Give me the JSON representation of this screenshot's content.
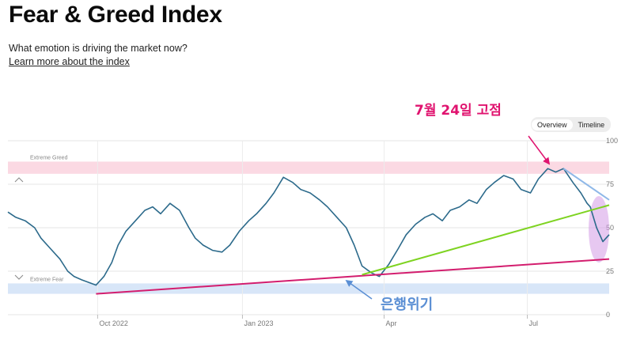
{
  "header": {
    "title": "Fear & Greed Index",
    "subtitle": "What emotion is driving the market now?",
    "learn_more": "Learn more about the index"
  },
  "view_toggle": {
    "options": [
      "Overview",
      "Timeline"
    ]
  },
  "annotations": {
    "peak_label": "7월 24일 고점",
    "bank_crisis_label": "은행위기"
  },
  "colors": {
    "line": "#2c6a8b",
    "greed_zone": "#fbd9e3",
    "fear_zone": "#d8e6f8",
    "annotation_magenta": "#e0136f",
    "annotation_blue": "#5b8fd4",
    "support_line": "#d31d6e",
    "trend_line": "#7ed321",
    "resistance_line": "#8fb8e8",
    "highlight": "#d49ae6"
  },
  "chart_data": {
    "type": "line",
    "title": "",
    "ylim": [
      0,
      100
    ],
    "yticks": [
      0,
      25,
      50,
      75,
      100
    ],
    "grid": true,
    "zones": [
      {
        "label": "Extreme Greed",
        "from": 81,
        "to": 88
      },
      {
        "label": "Extreme Fear",
        "from": 12,
        "to": 18
      }
    ],
    "xticks": [
      {
        "label": "Oct 2022",
        "date": "2022-10-01"
      },
      {
        "label": "Jan 2023",
        "date": "2023-01-01"
      },
      {
        "label": "Apr",
        "date": "2023-04-01"
      },
      {
        "label": "Jul",
        "date": "2023-07-01"
      }
    ],
    "x_range": [
      "2022-08-05",
      "2023-08-22"
    ],
    "series": [
      {
        "x": [
          "2022-08-05",
          "2022-08-10",
          "2022-08-16",
          "2022-08-22",
          "2022-08-26",
          "2022-09-01",
          "2022-09-07",
          "2022-09-12",
          "2022-09-16",
          "2022-09-21",
          "2022-09-27",
          "2022-09-30",
          "2022-10-05",
          "2022-10-10",
          "2022-10-14",
          "2022-10-19",
          "2022-10-25",
          "2022-10-31",
          "2022-11-05",
          "2022-11-10",
          "2022-11-16",
          "2022-11-22",
          "2022-11-28",
          "2022-12-02",
          "2022-12-07",
          "2022-12-13",
          "2022-12-19",
          "2022-12-24",
          "2022-12-30",
          "2023-01-05",
          "2023-01-10",
          "2023-01-16",
          "2023-01-21",
          "2023-01-27",
          "2023-02-02",
          "2023-02-07",
          "2023-02-13",
          "2023-02-19",
          "2023-02-24",
          "2023-03-02",
          "2023-03-08",
          "2023-03-13",
          "2023-03-18",
          "2023-03-24",
          "2023-03-29",
          "2023-04-04",
          "2023-04-10",
          "2023-04-15",
          "2023-04-21",
          "2023-04-27",
          "2023-05-02",
          "2023-05-08",
          "2023-05-13",
          "2023-05-19",
          "2023-05-25",
          "2023-05-30",
          "2023-06-05",
          "2023-06-10",
          "2023-06-16",
          "2023-06-22",
          "2023-06-27",
          "2023-07-03",
          "2023-07-08",
          "2023-07-14",
          "2023-07-19",
          "2023-07-24",
          "2023-07-30",
          "2023-08-04",
          "2023-08-08",
          "2023-08-10",
          "2023-08-14",
          "2023-08-18",
          "2023-08-22"
        ],
        "y": [
          59,
          56,
          54,
          50,
          44,
          38,
          32,
          25,
          22,
          20,
          18,
          17,
          22,
          30,
          40,
          48,
          54,
          60,
          62,
          58,
          64,
          60,
          50,
          44,
          40,
          37,
          36,
          40,
          48,
          54,
          58,
          64,
          70,
          79,
          76,
          72,
          70,
          66,
          62,
          56,
          50,
          40,
          28,
          24,
          22,
          29,
          38,
          46,
          52,
          56,
          58,
          54,
          60,
          62,
          66,
          64,
          72,
          76,
          80,
          78,
          72,
          70,
          78,
          84,
          82,
          84,
          76,
          70,
          64,
          62,
          50,
          42,
          46
        ]
      }
    ],
    "trend_lines": [
      {
        "name": "support",
        "from": {
          "x": "2022-09-30",
          "y": 12
        },
        "to": {
          "x": "2023-08-22",
          "y": 32
        }
      },
      {
        "name": "trend",
        "from": {
          "x": "2023-03-18",
          "y": 23
        },
        "to": {
          "x": "2023-08-22",
          "y": 63
        }
      },
      {
        "name": "resistance",
        "from": {
          "x": "2023-07-24",
          "y": 84
        },
        "to": {
          "x": "2023-08-22",
          "y": 66
        }
      }
    ]
  }
}
